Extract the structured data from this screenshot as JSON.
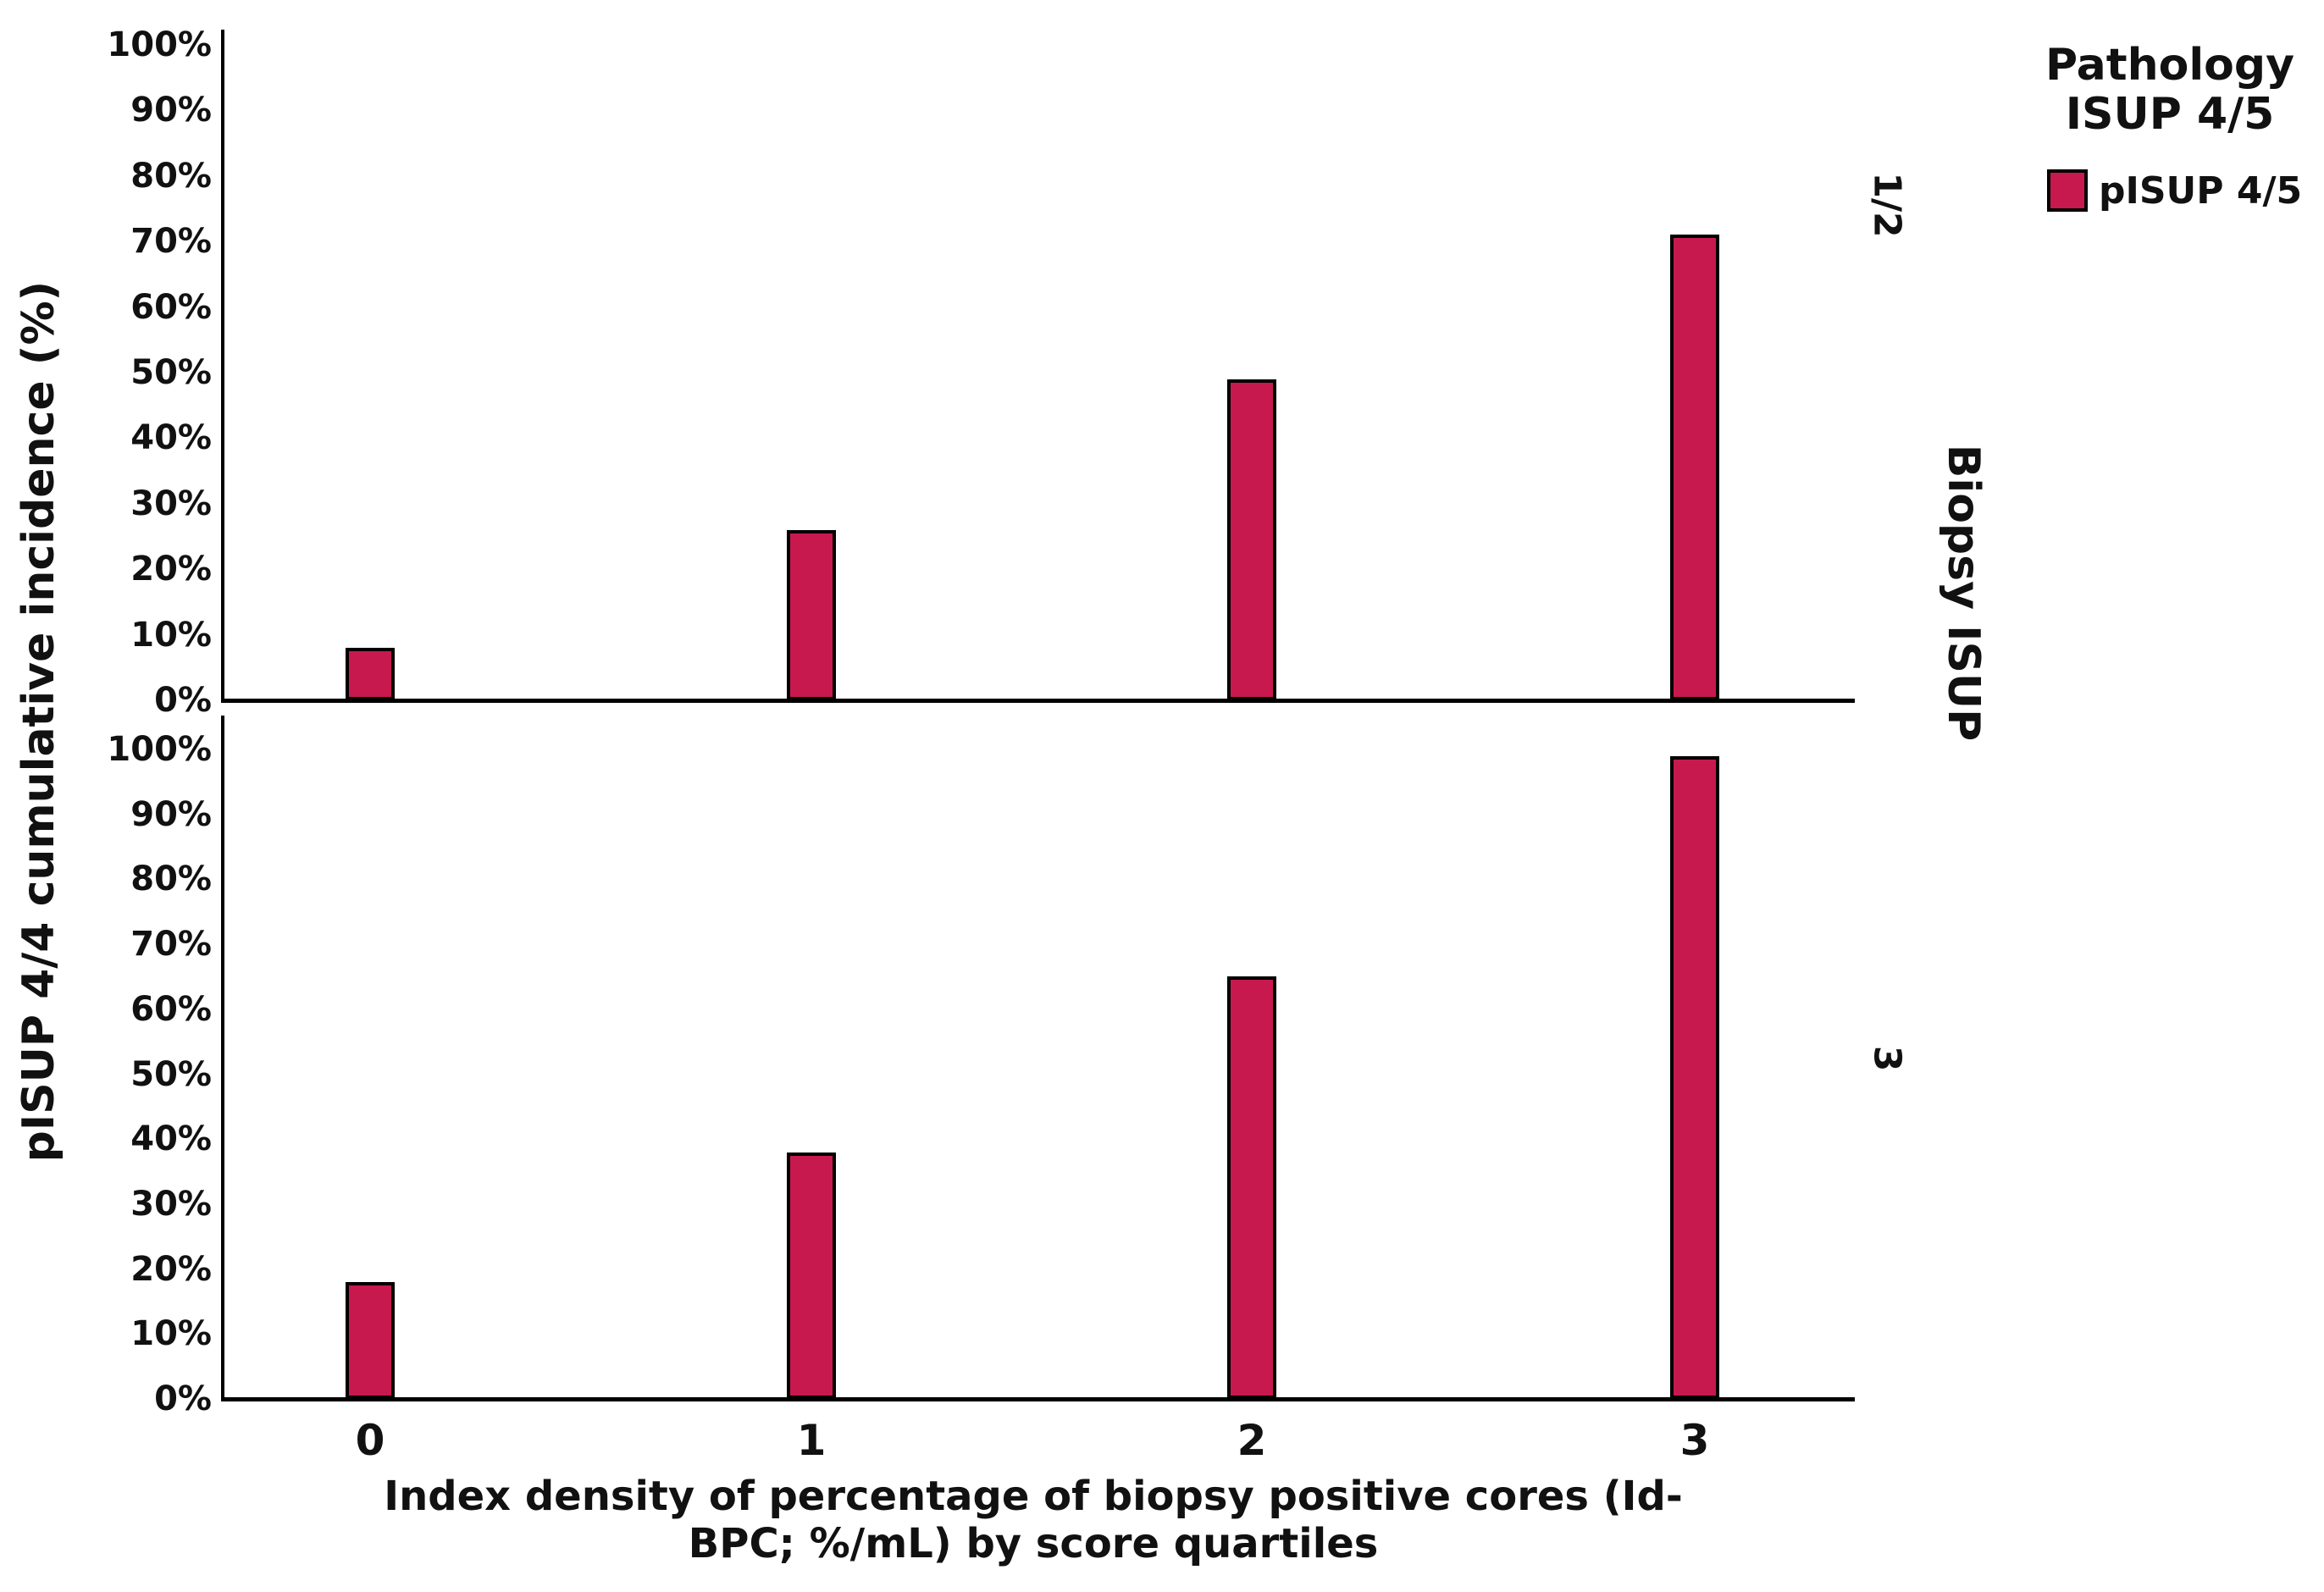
{
  "y_axis": {
    "label": "pISUP 4/4 cumulative incidence (%)",
    "tick_labels_top_to_bottom": [
      "100%",
      "90%",
      "80%",
      "70%",
      "60%",
      "50%",
      "40%",
      "30%",
      "20%",
      "10%",
      "0%"
    ]
  },
  "x_axis": {
    "title_line1": "Index density of percentage of biopsy positive cores (Id-",
    "title_line2": "BPC; %/mL) by score quartiles",
    "categories": [
      "0",
      "1",
      "2",
      "3"
    ]
  },
  "legend": {
    "title_line1": "Pathology",
    "title_line2": "ISUP 4/5",
    "entry_label": "pISUP 4/5",
    "swatch_color": "#C8194F"
  },
  "panel_axis": {
    "label": "Biopsy ISUP",
    "panel_labels": [
      "1/2",
      "3"
    ]
  },
  "chart_data": {
    "type": "bar",
    "title": "",
    "xlabel": "Index density of percentage of biopsy positive cores (Id-BPC; %/mL) by score quartiles",
    "ylabel": "pISUP 4/4 cumulative incidence (%)",
    "categories": [
      "0",
      "1",
      "2",
      "3"
    ],
    "series": [
      {
        "name": "pISUP 4/5",
        "panel": "Biopsy ISUP 1/2",
        "values": [
          8,
          26,
          49,
          71
        ]
      },
      {
        "name": "pISUP 4/5",
        "panel": "Biopsy ISUP 3",
        "values": [
          18,
          38,
          65,
          99
        ]
      }
    ],
    "ylim": [
      0,
      100
    ],
    "ytick_step_percent": 10,
    "ytick_format": "percent",
    "bar_color": "#C8194F",
    "bar_border_color": "#000000",
    "grid": false,
    "legend_title": "Pathology ISUP 4/5",
    "legend_entries": [
      "pISUP 4/5"
    ],
    "legend_position": "top-right",
    "panel_variable": "Biopsy ISUP",
    "panels_top_to_bottom": [
      "1/2",
      "3"
    ]
  }
}
